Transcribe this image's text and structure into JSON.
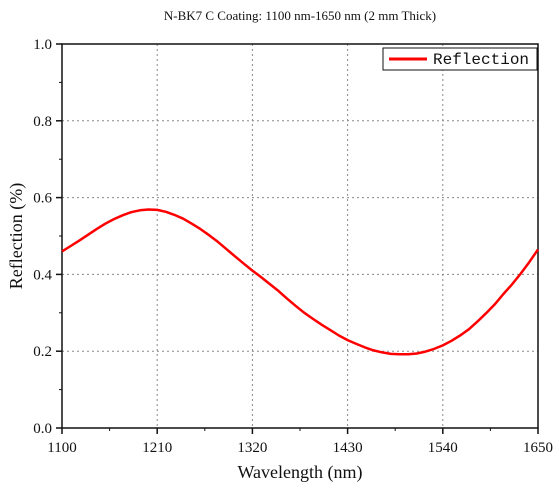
{
  "chart_data": {
    "type": "line",
    "title": "N-BK7 C Coating: 1100 nm-1650 nm (2 mm Thick)",
    "xlabel": "Wavelength (nm)",
    "ylabel": "Reflection (%)",
    "xlim": [
      1100,
      1650
    ],
    "ylim": [
      0.0,
      1.0
    ],
    "xticks": [
      "1100",
      "1210",
      "1320",
      "1430",
      "1540",
      "1650"
    ],
    "yticks": [
      "0.0",
      "0.2",
      "0.4",
      "0.6",
      "0.8",
      "1.0"
    ],
    "grid": true,
    "legend_position": "top-right",
    "series": [
      {
        "name": "Reflection",
        "color": "#ff0000",
        "x": [
          1100,
          1110,
          1120,
          1130,
          1140,
          1150,
          1160,
          1170,
          1180,
          1190,
          1200,
          1210,
          1220,
          1230,
          1240,
          1250,
          1260,
          1270,
          1280,
          1290,
          1300,
          1310,
          1320,
          1330,
          1340,
          1350,
          1360,
          1370,
          1380,
          1390,
          1400,
          1410,
          1420,
          1430,
          1440,
          1450,
          1460,
          1470,
          1480,
          1490,
          1500,
          1510,
          1520,
          1530,
          1540,
          1550,
          1560,
          1570,
          1580,
          1590,
          1600,
          1610,
          1620,
          1630,
          1640,
          1650
        ],
        "y": [
          0.46,
          0.474,
          0.488,
          0.503,
          0.518,
          0.532,
          0.544,
          0.554,
          0.562,
          0.567,
          0.569,
          0.568,
          0.563,
          0.555,
          0.545,
          0.532,
          0.518,
          0.502,
          0.485,
          0.466,
          0.447,
          0.428,
          0.41,
          0.393,
          0.375,
          0.357,
          0.337,
          0.318,
          0.3,
          0.284,
          0.269,
          0.255,
          0.241,
          0.229,
          0.219,
          0.21,
          0.202,
          0.197,
          0.193,
          0.192,
          0.192,
          0.194,
          0.199,
          0.206,
          0.215,
          0.227,
          0.241,
          0.257,
          0.277,
          0.299,
          0.322,
          0.349,
          0.374,
          0.402,
          0.432,
          0.465
        ]
      }
    ]
  }
}
